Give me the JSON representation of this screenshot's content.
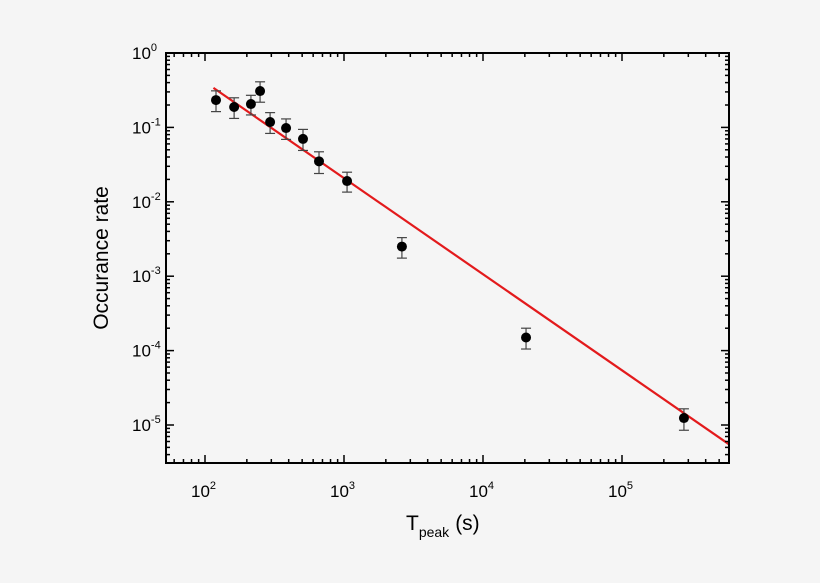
{
  "chart_data": {
    "type": "scatter",
    "title": "",
    "xlabel": "T_peak (s)",
    "xlabel_main": "T",
    "xlabel_sub": "peak",
    "xlabel_unit": "(s)",
    "ylabel": "Occurance rate",
    "xscale": "log",
    "yscale": "log",
    "xlim": [
      62,
      600000
    ],
    "ylim": [
      2.9e-06,
      1
    ],
    "x_ticks": [
      {
        "base": "10",
        "exp": "2",
        "value": 100
      },
      {
        "base": "10",
        "exp": "3",
        "value": 1000
      },
      {
        "base": "10",
        "exp": "4",
        "value": 10000
      },
      {
        "base": "10",
        "exp": "5",
        "value": 100000
      }
    ],
    "y_ticks": [
      {
        "base": "10",
        "exp": "0",
        "value": 1
      },
      {
        "base": "10",
        "exp": "-1",
        "value": 0.1
      },
      {
        "base": "10",
        "exp": "-2",
        "value": 0.01
      },
      {
        "base": "10",
        "exp": "-3",
        "value": 0.001
      },
      {
        "base": "10",
        "exp": "-4",
        "value": 0.0001
      },
      {
        "base": "10",
        "exp": "-5",
        "value": 1e-05
      }
    ],
    "grid": false,
    "legend": null,
    "series": [
      {
        "name": "data",
        "type": "scatter",
        "color": "#000000",
        "x": [
          120,
          162,
          214,
          249,
          294,
          383,
          507,
          661,
          1052,
          2610,
          20400,
          279000
        ],
        "y": [
          0.233,
          0.188,
          0.206,
          0.308,
          0.118,
          0.098,
          0.07,
          0.035,
          0.019,
          0.0025,
          0.00015,
          1.24e-05
        ],
        "yerr_low": [
          0.163,
          0.132,
          0.147,
          0.218,
          0.083,
          0.069,
          0.049,
          0.024,
          0.0135,
          0.00175,
          0.000105,
          8.5e-06
        ],
        "yerr_high": [
          0.31,
          0.25,
          0.27,
          0.41,
          0.158,
          0.13,
          0.094,
          0.047,
          0.025,
          0.0033,
          0.0002,
          1.65e-05
        ]
      },
      {
        "name": "power-law fit",
        "type": "line",
        "color": "#e31a1c",
        "x": [
          115,
          600000
        ],
        "y": [
          0.34,
          5.5e-06
        ]
      }
    ]
  }
}
